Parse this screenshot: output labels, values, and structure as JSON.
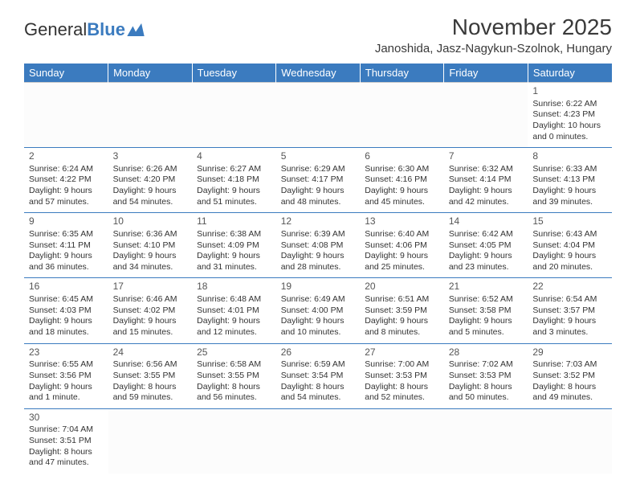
{
  "logo": {
    "text1": "General",
    "text2": "Blue"
  },
  "title": "November 2025",
  "location": "Janoshida, Jasz-Nagykun-Szolnok, Hungary",
  "colors": {
    "header_bg": "#3b7bbf",
    "header_text": "#ffffff",
    "row_border": "#3b7bbf",
    "text": "#333333",
    "background": "#ffffff"
  },
  "fonts": {
    "title_size_pt": 28,
    "location_size_pt": 15,
    "header_size_pt": 13,
    "cell_size_pt": 10.5,
    "daynum_size_pt": 12
  },
  "columns": [
    "Sunday",
    "Monday",
    "Tuesday",
    "Wednesday",
    "Thursday",
    "Friday",
    "Saturday"
  ],
  "weeks": [
    [
      null,
      null,
      null,
      null,
      null,
      null,
      {
        "day": "1",
        "sunrise": "Sunrise: 6:22 AM",
        "sunset": "Sunset: 4:23 PM",
        "daylight": "Daylight: 10 hours and 0 minutes."
      }
    ],
    [
      {
        "day": "2",
        "sunrise": "Sunrise: 6:24 AM",
        "sunset": "Sunset: 4:22 PM",
        "daylight": "Daylight: 9 hours and 57 minutes."
      },
      {
        "day": "3",
        "sunrise": "Sunrise: 6:26 AM",
        "sunset": "Sunset: 4:20 PM",
        "daylight": "Daylight: 9 hours and 54 minutes."
      },
      {
        "day": "4",
        "sunrise": "Sunrise: 6:27 AM",
        "sunset": "Sunset: 4:18 PM",
        "daylight": "Daylight: 9 hours and 51 minutes."
      },
      {
        "day": "5",
        "sunrise": "Sunrise: 6:29 AM",
        "sunset": "Sunset: 4:17 PM",
        "daylight": "Daylight: 9 hours and 48 minutes."
      },
      {
        "day": "6",
        "sunrise": "Sunrise: 6:30 AM",
        "sunset": "Sunset: 4:16 PM",
        "daylight": "Daylight: 9 hours and 45 minutes."
      },
      {
        "day": "7",
        "sunrise": "Sunrise: 6:32 AM",
        "sunset": "Sunset: 4:14 PM",
        "daylight": "Daylight: 9 hours and 42 minutes."
      },
      {
        "day": "8",
        "sunrise": "Sunrise: 6:33 AM",
        "sunset": "Sunset: 4:13 PM",
        "daylight": "Daylight: 9 hours and 39 minutes."
      }
    ],
    [
      {
        "day": "9",
        "sunrise": "Sunrise: 6:35 AM",
        "sunset": "Sunset: 4:11 PM",
        "daylight": "Daylight: 9 hours and 36 minutes."
      },
      {
        "day": "10",
        "sunrise": "Sunrise: 6:36 AM",
        "sunset": "Sunset: 4:10 PM",
        "daylight": "Daylight: 9 hours and 34 minutes."
      },
      {
        "day": "11",
        "sunrise": "Sunrise: 6:38 AM",
        "sunset": "Sunset: 4:09 PM",
        "daylight": "Daylight: 9 hours and 31 minutes."
      },
      {
        "day": "12",
        "sunrise": "Sunrise: 6:39 AM",
        "sunset": "Sunset: 4:08 PM",
        "daylight": "Daylight: 9 hours and 28 minutes."
      },
      {
        "day": "13",
        "sunrise": "Sunrise: 6:40 AM",
        "sunset": "Sunset: 4:06 PM",
        "daylight": "Daylight: 9 hours and 25 minutes."
      },
      {
        "day": "14",
        "sunrise": "Sunrise: 6:42 AM",
        "sunset": "Sunset: 4:05 PM",
        "daylight": "Daylight: 9 hours and 23 minutes."
      },
      {
        "day": "15",
        "sunrise": "Sunrise: 6:43 AM",
        "sunset": "Sunset: 4:04 PM",
        "daylight": "Daylight: 9 hours and 20 minutes."
      }
    ],
    [
      {
        "day": "16",
        "sunrise": "Sunrise: 6:45 AM",
        "sunset": "Sunset: 4:03 PM",
        "daylight": "Daylight: 9 hours and 18 minutes."
      },
      {
        "day": "17",
        "sunrise": "Sunrise: 6:46 AM",
        "sunset": "Sunset: 4:02 PM",
        "daylight": "Daylight: 9 hours and 15 minutes."
      },
      {
        "day": "18",
        "sunrise": "Sunrise: 6:48 AM",
        "sunset": "Sunset: 4:01 PM",
        "daylight": "Daylight: 9 hours and 12 minutes."
      },
      {
        "day": "19",
        "sunrise": "Sunrise: 6:49 AM",
        "sunset": "Sunset: 4:00 PM",
        "daylight": "Daylight: 9 hours and 10 minutes."
      },
      {
        "day": "20",
        "sunrise": "Sunrise: 6:51 AM",
        "sunset": "Sunset: 3:59 PM",
        "daylight": "Daylight: 9 hours and 8 minutes."
      },
      {
        "day": "21",
        "sunrise": "Sunrise: 6:52 AM",
        "sunset": "Sunset: 3:58 PM",
        "daylight": "Daylight: 9 hours and 5 minutes."
      },
      {
        "day": "22",
        "sunrise": "Sunrise: 6:54 AM",
        "sunset": "Sunset: 3:57 PM",
        "daylight": "Daylight: 9 hours and 3 minutes."
      }
    ],
    [
      {
        "day": "23",
        "sunrise": "Sunrise: 6:55 AM",
        "sunset": "Sunset: 3:56 PM",
        "daylight": "Daylight: 9 hours and 1 minute."
      },
      {
        "day": "24",
        "sunrise": "Sunrise: 6:56 AM",
        "sunset": "Sunset: 3:55 PM",
        "daylight": "Daylight: 8 hours and 59 minutes."
      },
      {
        "day": "25",
        "sunrise": "Sunrise: 6:58 AM",
        "sunset": "Sunset: 3:55 PM",
        "daylight": "Daylight: 8 hours and 56 minutes."
      },
      {
        "day": "26",
        "sunrise": "Sunrise: 6:59 AM",
        "sunset": "Sunset: 3:54 PM",
        "daylight": "Daylight: 8 hours and 54 minutes."
      },
      {
        "day": "27",
        "sunrise": "Sunrise: 7:00 AM",
        "sunset": "Sunset: 3:53 PM",
        "daylight": "Daylight: 8 hours and 52 minutes."
      },
      {
        "day": "28",
        "sunrise": "Sunrise: 7:02 AM",
        "sunset": "Sunset: 3:53 PM",
        "daylight": "Daylight: 8 hours and 50 minutes."
      },
      {
        "day": "29",
        "sunrise": "Sunrise: 7:03 AM",
        "sunset": "Sunset: 3:52 PM",
        "daylight": "Daylight: 8 hours and 49 minutes."
      }
    ],
    [
      {
        "day": "30",
        "sunrise": "Sunrise: 7:04 AM",
        "sunset": "Sunset: 3:51 PM",
        "daylight": "Daylight: 8 hours and 47 minutes."
      },
      null,
      null,
      null,
      null,
      null,
      null
    ]
  ]
}
